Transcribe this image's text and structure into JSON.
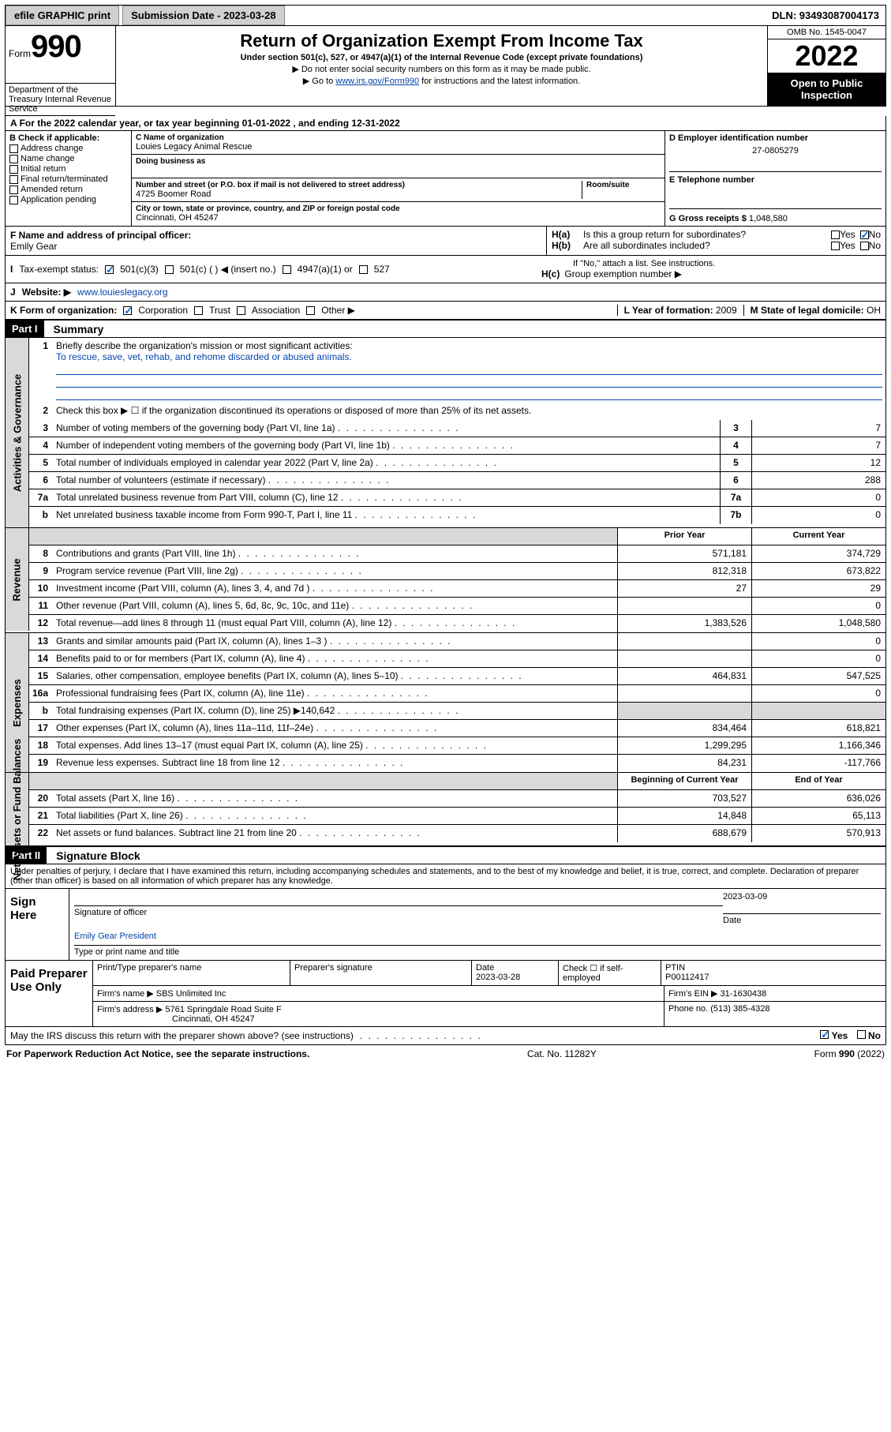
{
  "topbar": {
    "efile": "efile GRAPHIC print",
    "submission_label": "Submission Date - 2023-03-28",
    "dln": "DLN: 93493087004173"
  },
  "header": {
    "form_word": "Form",
    "form_num": "990",
    "title": "Return of Organization Exempt From Income Tax",
    "subtitle": "Under section 501(c), 527, or 4947(a)(1) of the Internal Revenue Code (except private foundations)",
    "note1": "▶ Do not enter social security numbers on this form as it may be made public.",
    "note2_pre": "▶ Go to ",
    "note2_link": "www.irs.gov/Form990",
    "note2_post": " for instructions and the latest information.",
    "omb": "OMB No. 1545-0047",
    "year": "2022",
    "open": "Open to Public Inspection",
    "dept": "Department of the Treasury Internal Revenue Service"
  },
  "section_a": {
    "cal_year": "For the 2022 calendar year, or tax year beginning 01-01-2022    , and ending 12-31-2022",
    "b_label": "B Check if applicable:",
    "b_opts": [
      "Address change",
      "Name change",
      "Initial return",
      "Final return/terminated",
      "Amended return",
      "Application pending"
    ],
    "c_label": "C Name of organization",
    "c_name": "Louies Legacy Animal Rescue",
    "dba_label": "Doing business as",
    "street_label": "Number and street (or P.O. box if mail is not delivered to street address)",
    "street": "4725 Boomer Road",
    "room_label": "Room/suite",
    "city_label": "City or town, state or province, country, and ZIP or foreign postal code",
    "city": "Cincinnati, OH  45247",
    "d_label": "D Employer identification number",
    "d_val": "27-0805279",
    "e_label": "E Telephone number",
    "g_label": "G Gross receipts $",
    "g_val": "1,048,580",
    "f_label": "F Name and address of principal officer:",
    "f_name": "Emily Gear",
    "ha_label": "H(a)",
    "ha_text": "Is this a group return for subordinates?",
    "hb_label": "H(b)",
    "hb_text": "Are all subordinates included?",
    "hb_note": "If \"No,\" attach a list. See instructions.",
    "hc_label": "H(c)",
    "hc_text": "Group exemption number ▶",
    "yes": "Yes",
    "no": "No",
    "i_label": "Tax-exempt status:",
    "i_opts": [
      "501(c)(3)",
      "501(c) (  ) ◀ (insert no.)",
      "4947(a)(1) or",
      "527"
    ],
    "j_label": "Website: ▶",
    "j_val": "www.louieslegacy.org",
    "k_label": "K Form of organization:",
    "k_opts": [
      "Corporation",
      "Trust",
      "Association",
      "Other ▶"
    ],
    "l_label": "L Year of formation:",
    "l_val": "2009",
    "m_label": "M State of legal domicile:",
    "m_val": "OH"
  },
  "part1": {
    "label": "Part I",
    "title": "Summary",
    "line1_label": "Briefly describe the organization's mission or most significant activities:",
    "line1_text": "To rescue, save, vet, rehab, and rehome discarded or abused animals.",
    "line2": "Check this box ▶ ☐ if the organization discontinued its operations or disposed of more than 25% of its net assets.",
    "side_gov": "Activities & Governance",
    "side_rev": "Revenue",
    "side_exp": "Expenses",
    "side_net": "Net Assets or Fund Balances",
    "gov_lines": [
      {
        "n": "3",
        "t": "Number of voting members of the governing body (Part VI, line 1a)",
        "b": "3",
        "v": "7"
      },
      {
        "n": "4",
        "t": "Number of independent voting members of the governing body (Part VI, line 1b)",
        "b": "4",
        "v": "7"
      },
      {
        "n": "5",
        "t": "Total number of individuals employed in calendar year 2022 (Part V, line 2a)",
        "b": "5",
        "v": "12"
      },
      {
        "n": "6",
        "t": "Total number of volunteers (estimate if necessary)",
        "b": "6",
        "v": "288"
      },
      {
        "n": "7a",
        "t": "Total unrelated business revenue from Part VIII, column (C), line 12",
        "b": "7a",
        "v": "0"
      },
      {
        "n": "b",
        "t": "Net unrelated business taxable income from Form 990-T, Part I, line 11",
        "b": "7b",
        "v": "0"
      }
    ],
    "col_prior": "Prior Year",
    "col_current": "Current Year",
    "rev_lines": [
      {
        "n": "8",
        "t": "Contributions and grants (Part VIII, line 1h)",
        "p": "571,181",
        "c": "374,729"
      },
      {
        "n": "9",
        "t": "Program service revenue (Part VIII, line 2g)",
        "p": "812,318",
        "c": "673,822"
      },
      {
        "n": "10",
        "t": "Investment income (Part VIII, column (A), lines 3, 4, and 7d )",
        "p": "27",
        "c": "29"
      },
      {
        "n": "11",
        "t": "Other revenue (Part VIII, column (A), lines 5, 6d, 8c, 9c, 10c, and 11e)",
        "p": "",
        "c": "0"
      },
      {
        "n": "12",
        "t": "Total revenue—add lines 8 through 11 (must equal Part VIII, column (A), line 12)",
        "p": "1,383,526",
        "c": "1,048,580"
      }
    ],
    "exp_lines": [
      {
        "n": "13",
        "t": "Grants and similar amounts paid (Part IX, column (A), lines 1–3 )",
        "p": "",
        "c": "0"
      },
      {
        "n": "14",
        "t": "Benefits paid to or for members (Part IX, column (A), line 4)",
        "p": "",
        "c": "0"
      },
      {
        "n": "15",
        "t": "Salaries, other compensation, employee benefits (Part IX, column (A), lines 5–10)",
        "p": "464,831",
        "c": "547,525"
      },
      {
        "n": "16a",
        "t": "Professional fundraising fees (Part IX, column (A), line 11e)",
        "p": "",
        "c": "0"
      },
      {
        "n": "b",
        "t": "Total fundraising expenses (Part IX, column (D), line 25) ▶140,642",
        "p": "gray",
        "c": "gray"
      },
      {
        "n": "17",
        "t": "Other expenses (Part IX, column (A), lines 11a–11d, 11f–24e)",
        "p": "834,464",
        "c": "618,821"
      },
      {
        "n": "18",
        "t": "Total expenses. Add lines 13–17 (must equal Part IX, column (A), line 25)",
        "p": "1,299,295",
        "c": "1,166,346"
      },
      {
        "n": "19",
        "t": "Revenue less expenses. Subtract line 18 from line 12",
        "p": "84,231",
        "c": "-117,766"
      }
    ],
    "col_begin": "Beginning of Current Year",
    "col_end": "End of Year",
    "net_lines": [
      {
        "n": "20",
        "t": "Total assets (Part X, line 16)",
        "p": "703,527",
        "c": "636,026"
      },
      {
        "n": "21",
        "t": "Total liabilities (Part X, line 26)",
        "p": "14,848",
        "c": "65,113"
      },
      {
        "n": "22",
        "t": "Net assets or fund balances. Subtract line 21 from line 20",
        "p": "688,679",
        "c": "570,913"
      }
    ]
  },
  "part2": {
    "label": "Part II",
    "title": "Signature Block",
    "decl": "Under penalties of perjury, I declare that I have examined this return, including accompanying schedules and statements, and to the best of my knowledge and belief, it is true, correct, and complete. Declaration of preparer (other than officer) is based on all information of which preparer has any knowledge.",
    "sign_here": "Sign Here",
    "sig_officer": "Signature of officer",
    "sig_date": "2023-03-09",
    "date_label": "Date",
    "officer_name": "Emily Gear  President",
    "officer_sub": "Type or print name and title",
    "paid": "Paid Preparer Use Only",
    "prep_name_label": "Print/Type preparer's name",
    "prep_sig_label": "Preparer's signature",
    "prep_date_label": "Date",
    "prep_date": "2023-03-28",
    "check_self": "Check ☐ if self-employed",
    "ptin_label": "PTIN",
    "ptin": "P00112417",
    "firm_name_label": "Firm's name    ▶",
    "firm_name": "SBS Unlimited Inc",
    "firm_ein_label": "Firm's EIN ▶",
    "firm_ein": "31-1630438",
    "firm_addr_label": "Firm's address ▶",
    "firm_addr1": "5761 Springdale Road Suite F",
    "firm_addr2": "Cincinnati, OH  45247",
    "phone_label": "Phone no.",
    "phone": "(513) 385-4328",
    "may_irs": "May the IRS discuss this return with the preparer shown above? (see instructions)"
  },
  "footer": {
    "left": "For Paperwork Reduction Act Notice, see the separate instructions.",
    "mid": "Cat. No. 11282Y",
    "right": "Form 990 (2022)"
  }
}
